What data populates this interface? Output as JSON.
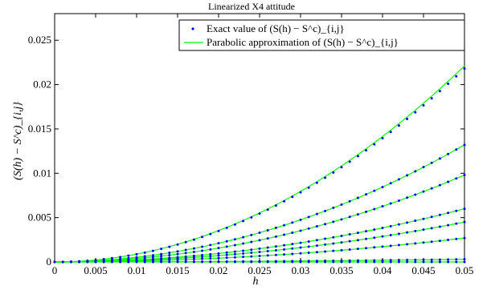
{
  "chart_data": {
    "type": "scatter",
    "title": "Linearized X4 attitude",
    "xlabel": "h",
    "ylabel": "(S(h) − S^c)_{i,j}",
    "xlim": [
      0,
      0.05
    ],
    "ylim": [
      0,
      0.028
    ],
    "x_ticks": [
      0,
      0.005,
      0.01,
      0.015,
      0.02,
      0.025,
      0.03,
      0.035,
      0.04,
      0.045,
      0.05
    ],
    "x_tick_labels": [
      "0",
      "0.005",
      "0.01",
      "0.015",
      "0.02",
      "0.025",
      "0.03",
      "0.035",
      "0.04",
      "0.045",
      "0.05"
    ],
    "y_ticks": [
      0,
      0.005,
      0.01,
      0.015,
      0.02,
      0.025
    ],
    "y_tick_labels": [
      "0",
      "0.005",
      "0.01",
      "0.015",
      "0.02",
      "0.025"
    ],
    "grid": false,
    "legend": {
      "placement": "top-right",
      "entries": [
        {
          "label": "Exact value of (S(h) − S^c)_{i,j}",
          "marker": "dot",
          "color": "#0000ff"
        },
        {
          "label": "Parabolic approximation of (S(h) − S^c)_{i,j}",
          "marker": "line",
          "color": "#00ff00"
        }
      ]
    },
    "series_colors": {
      "exact": "#0000ff",
      "approx": "#00ff00"
    },
    "series": [
      {
        "curve_at_xmax": 0.0221,
        "exact_at_xmax": 0.0218
      },
      {
        "curve_at_xmax": 0.0132,
        "exact_at_xmax": 0.0132
      },
      {
        "curve_at_xmax": 0.0098,
        "exact_at_xmax": 0.0098
      },
      {
        "curve_at_xmax": 0.006,
        "exact_at_xmax": 0.006
      },
      {
        "curve_at_xmax": 0.0045,
        "exact_at_xmax": 0.0045
      },
      {
        "curve_at_xmax": 0.0027,
        "exact_at_xmax": 0.0027
      },
      {
        "curve_at_xmax": 0.0003,
        "exact_at_xmax": 0.0003
      },
      {
        "curve_at_xmax": 0.0,
        "exact_at_xmax": 0.0
      }
    ],
    "samples_per_series": 51
  }
}
